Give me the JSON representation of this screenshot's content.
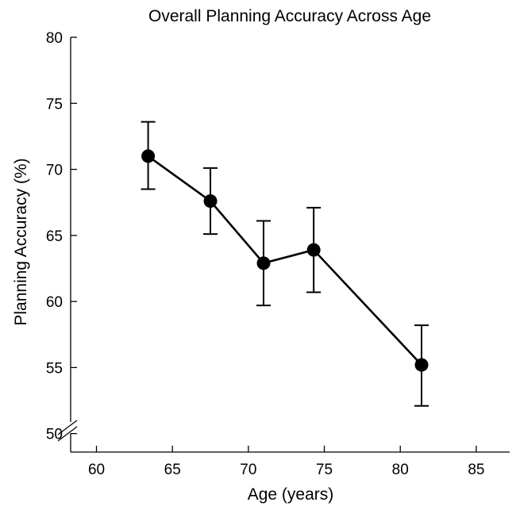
{
  "chart_data": {
    "type": "line",
    "title": "Overall Planning Accuracy Across Age",
    "xlabel": "Age (years)",
    "ylabel": "Planning Accuracy (%)",
    "xlim": [
      58.3,
      87.2
    ],
    "ylim": [
      48.6,
      80
    ],
    "x_ticks": [
      60,
      65,
      70,
      75,
      80,
      85
    ],
    "y_ticks": [
      50,
      55,
      60,
      65,
      70,
      75,
      80
    ],
    "y_axis_break": true,
    "grid": false,
    "marker": "filled-circle",
    "color": "#000000",
    "series": [
      {
        "x": [
          63.4,
          67.5,
          71.0,
          74.3,
          81.4
        ],
        "y": [
          71.0,
          67.6,
          62.9,
          63.9,
          55.2
        ],
        "err_upper": [
          73.6,
          70.1,
          66.1,
          67.1,
          58.2
        ],
        "err_lower": [
          68.5,
          65.1,
          59.7,
          60.7,
          52.1
        ]
      }
    ]
  }
}
